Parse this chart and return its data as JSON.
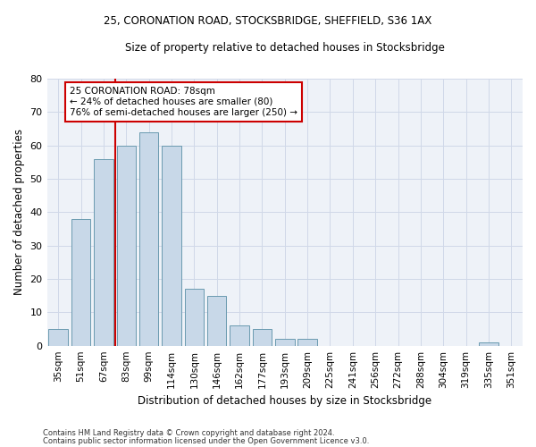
{
  "title1": "25, CORONATION ROAD, STOCKSBRIDGE, SHEFFIELD, S36 1AX",
  "title2": "Size of property relative to detached houses in Stocksbridge",
  "xlabel": "Distribution of detached houses by size in Stocksbridge",
  "ylabel": "Number of detached properties",
  "categories": [
    "35sqm",
    "51sqm",
    "67sqm",
    "83sqm",
    "99sqm",
    "114sqm",
    "130sqm",
    "146sqm",
    "162sqm",
    "177sqm",
    "193sqm",
    "209sqm",
    "225sqm",
    "241sqm",
    "256sqm",
    "272sqm",
    "288sqm",
    "304sqm",
    "319sqm",
    "335sqm",
    "351sqm"
  ],
  "values": [
    5,
    38,
    56,
    60,
    64,
    60,
    17,
    15,
    6,
    5,
    2,
    2,
    0,
    0,
    0,
    0,
    0,
    0,
    0,
    1,
    0
  ],
  "bar_color": "#c8d8e8",
  "bar_edge_color": "#6a9ab0",
  "vline_color": "#cc0000",
  "vline_index": 2.5,
  "annotation_line1": "25 CORONATION ROAD: 78sqm",
  "annotation_line2": "← 24% of detached houses are smaller (80)",
  "annotation_line3": "76% of semi-detached houses are larger (250) →",
  "annotation_box_color": "#ffffff",
  "annotation_box_edge": "#cc0000",
  "ylim": [
    0,
    80
  ],
  "yticks": [
    0,
    10,
    20,
    30,
    40,
    50,
    60,
    70,
    80
  ],
  "grid_color": "#d0d8e8",
  "bg_color": "#eef2f8",
  "footnote1": "Contains HM Land Registry data © Crown copyright and database right 2024.",
  "footnote2": "Contains public sector information licensed under the Open Government Licence v3.0."
}
